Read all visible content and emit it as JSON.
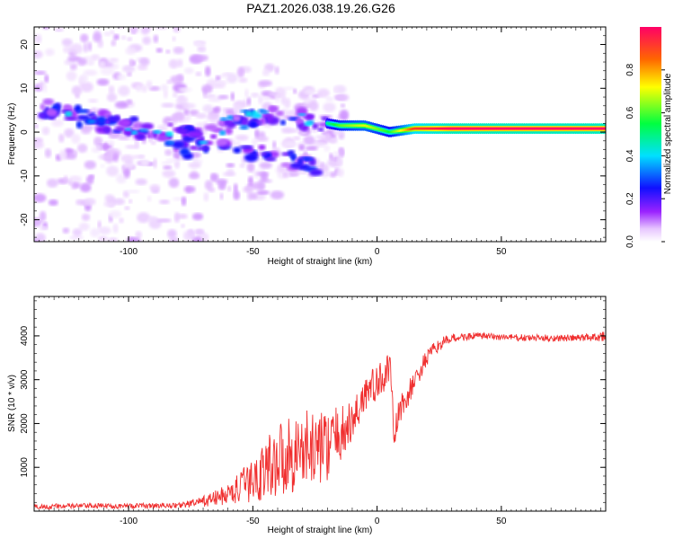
{
  "figure_title": "PAZ1.2026.038.19.26.G26",
  "chart_data": [
    {
      "type": "heatmap",
      "title": "PAZ1.2026.038.19.26.G26",
      "xlabel": "Height of straight line (km)",
      "ylabel": "Frequency (Hz)",
      "xlim": [
        -138,
        92
      ],
      "ylim": [
        -25,
        24
      ],
      "x_ticks": [
        -100,
        -50,
        0,
        50
      ],
      "x_tick_labels": [
        "-100",
        "-50",
        "0",
        "50"
      ],
      "y_ticks": [
        -20,
        -10,
        0,
        10,
        20
      ],
      "y_tick_labels": [
        "-20",
        "-10",
        "0",
        "10",
        "20"
      ],
      "colorbar": {
        "label": "Normalized spectral amplitude",
        "range": [
          0,
          1
        ],
        "ticks": [
          0.0,
          0.2,
          0.4,
          0.6,
          0.8
        ],
        "tick_labels": [
          "0.0",
          "0.2",
          "0.4",
          "0.6",
          "0.8"
        ],
        "colormap": "rainbow"
      },
      "ridge": [
        {
          "x": -130,
          "freq": 5,
          "amp": 0.22
        },
        {
          "x": -115,
          "freq": 3,
          "amp": 0.18
        },
        {
          "x": -100,
          "freq": 1,
          "amp": 0.22
        },
        {
          "x": -85,
          "freq": -2,
          "amp": 0.18
        },
        {
          "x": -75,
          "freq": -4,
          "amp": 0.2
        },
        {
          "x": -60,
          "freq": 2,
          "amp": 0.2
        },
        {
          "x": -45,
          "freq": 4,
          "amp": 0.18
        },
        {
          "x": -30,
          "freq": 3,
          "amp": 0.22
        },
        {
          "x": -15,
          "freq": 1.5,
          "amp": 0.6
        },
        {
          "x": -5,
          "freq": 1.5,
          "amp": 0.7
        },
        {
          "x": 5,
          "freq": 0,
          "amp": 0.55
        },
        {
          "x": 15,
          "freq": 0.8,
          "amp": 0.9
        },
        {
          "x": 30,
          "freq": 0.8,
          "amp": 1.0
        },
        {
          "x": 90,
          "freq": 0.8,
          "amp": 1.0
        }
      ]
    },
    {
      "type": "line",
      "xlabel": "Height of straight line (km)",
      "ylabel": "SNR (10 * v/v)",
      "xlim": [
        -138,
        92
      ],
      "ylim": [
        0,
        4900
      ],
      "x_ticks": [
        -100,
        -50,
        0,
        50
      ],
      "x_tick_labels": [
        "-100",
        "-50",
        "0",
        "50"
      ],
      "y_ticks": [
        1000,
        2000,
        3000,
        4000
      ],
      "y_tick_labels": [
        "1000",
        "2000",
        "3000",
        "4000"
      ],
      "color": "#f03030",
      "series": [
        {
          "name": "SNR",
          "x": [
            -138,
            -120,
            -100,
            -80,
            -70,
            -60,
            -50,
            -40,
            -30,
            -20,
            -10,
            -5,
            0,
            5,
            7,
            9,
            12,
            20,
            25,
            30,
            40,
            60,
            80,
            92
          ],
          "mean": [
            100,
            120,
            120,
            130,
            220,
            380,
            700,
            1200,
            1400,
            1500,
            2000,
            2700,
            2900,
            3300,
            1700,
            2300,
            2600,
            3500,
            3800,
            3950,
            4000,
            3950,
            3950,
            4000
          ],
          "noise": [
            60,
            60,
            60,
            60,
            120,
            250,
            500,
            900,
            900,
            800,
            500,
            500,
            400,
            400,
            400,
            300,
            300,
            200,
            150,
            100,
            80,
            80,
            80,
            120
          ]
        }
      ]
    }
  ]
}
